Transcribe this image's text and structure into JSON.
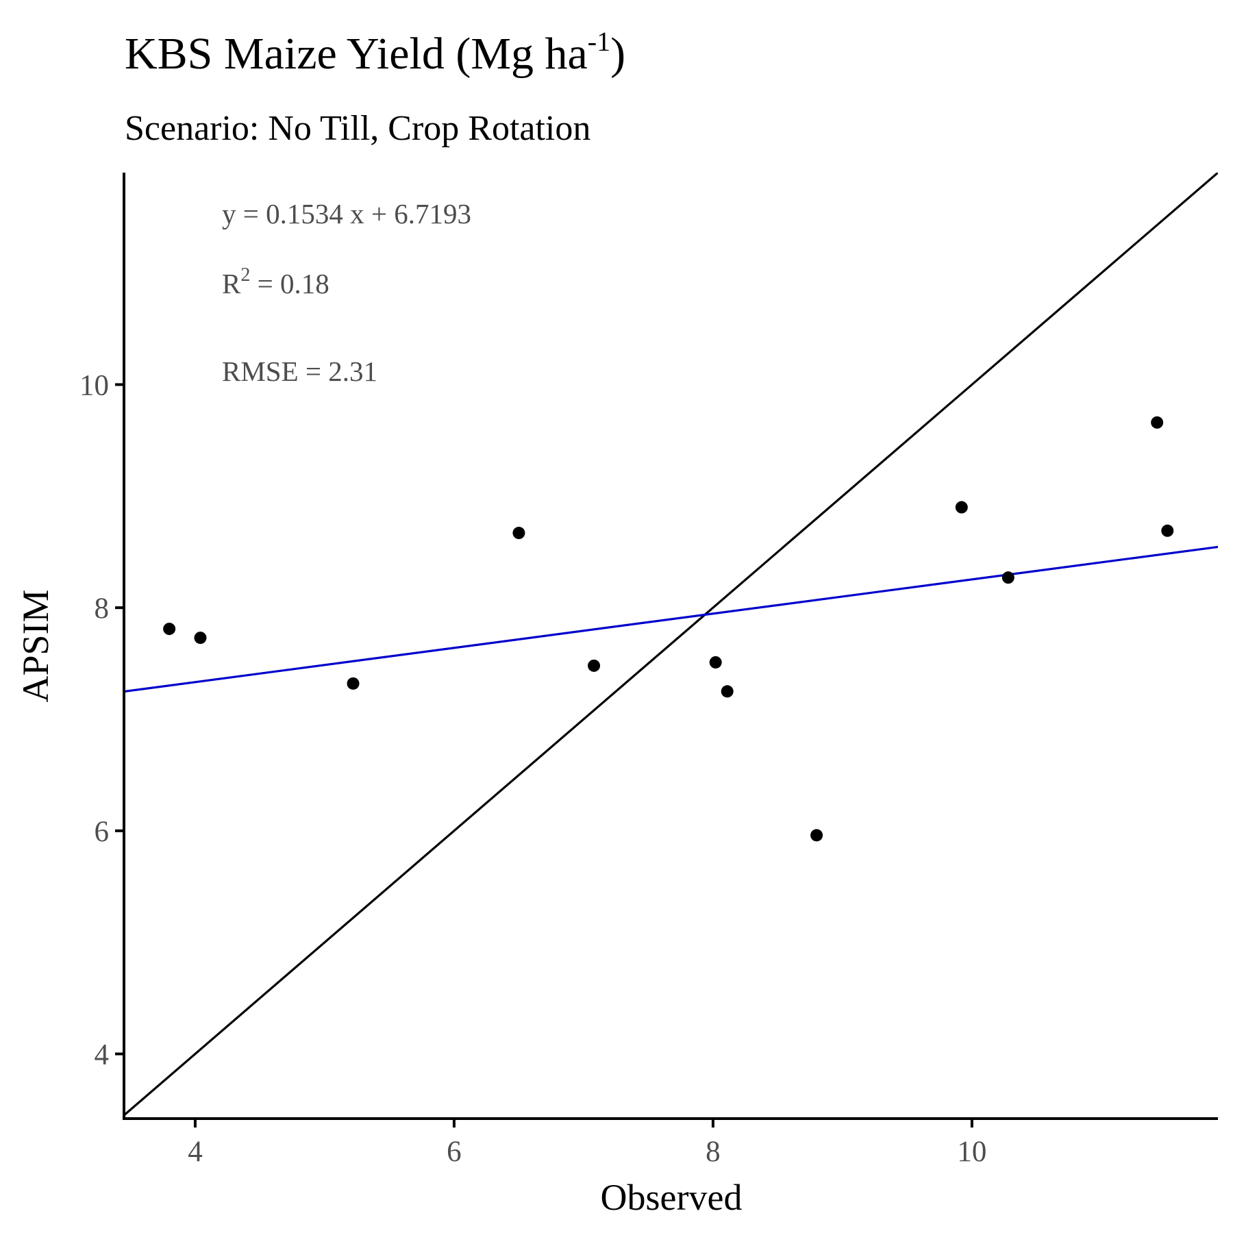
{
  "chart_data": {
    "type": "scatter",
    "title": {
      "main": "KBS Maize Yield (Mg ha",
      "superscript": "-1",
      "close": ")"
    },
    "subtitle": "Scenario: No Till, Crop Rotation",
    "xlabel": "Observed",
    "ylabel": "APSIM",
    "xlim": [
      3.45,
      11.9
    ],
    "ylim": [
      3.42,
      11.9
    ],
    "x_ticks": [
      4,
      6,
      8,
      10
    ],
    "y_ticks": [
      4,
      6,
      8,
      10
    ],
    "x_tick_labels": [
      "4",
      "6",
      "8",
      "10"
    ],
    "y_tick_labels": [
      "4",
      "6",
      "8",
      "10"
    ],
    "grid": false,
    "point_color": "#000000",
    "points": [
      {
        "x": 3.8,
        "y": 7.81
      },
      {
        "x": 4.04,
        "y": 7.73
      },
      {
        "x": 5.22,
        "y": 7.32
      },
      {
        "x": 6.5,
        "y": 8.67
      },
      {
        "x": 7.08,
        "y": 7.48
      },
      {
        "x": 8.02,
        "y": 7.51
      },
      {
        "x": 8.11,
        "y": 7.25
      },
      {
        "x": 8.8,
        "y": 5.96
      },
      {
        "x": 9.92,
        "y": 8.9
      },
      {
        "x": 10.28,
        "y": 8.27
      },
      {
        "x": 11.43,
        "y": 9.66
      },
      {
        "x": 11.51,
        "y": 8.69
      }
    ],
    "reference_line": {
      "slope": 1,
      "intercept": 0,
      "color": "#000000"
    },
    "regression_line": {
      "slope": 0.1534,
      "intercept": 6.7193,
      "color": "#0000cc"
    },
    "annotations": {
      "equation": "y = 0.1534 x +  6.7193",
      "r2_label": "R",
      "r2_superscript": "2",
      "r2_value": " = 0.18",
      "rmse": "RMSE = 2.31"
    }
  }
}
